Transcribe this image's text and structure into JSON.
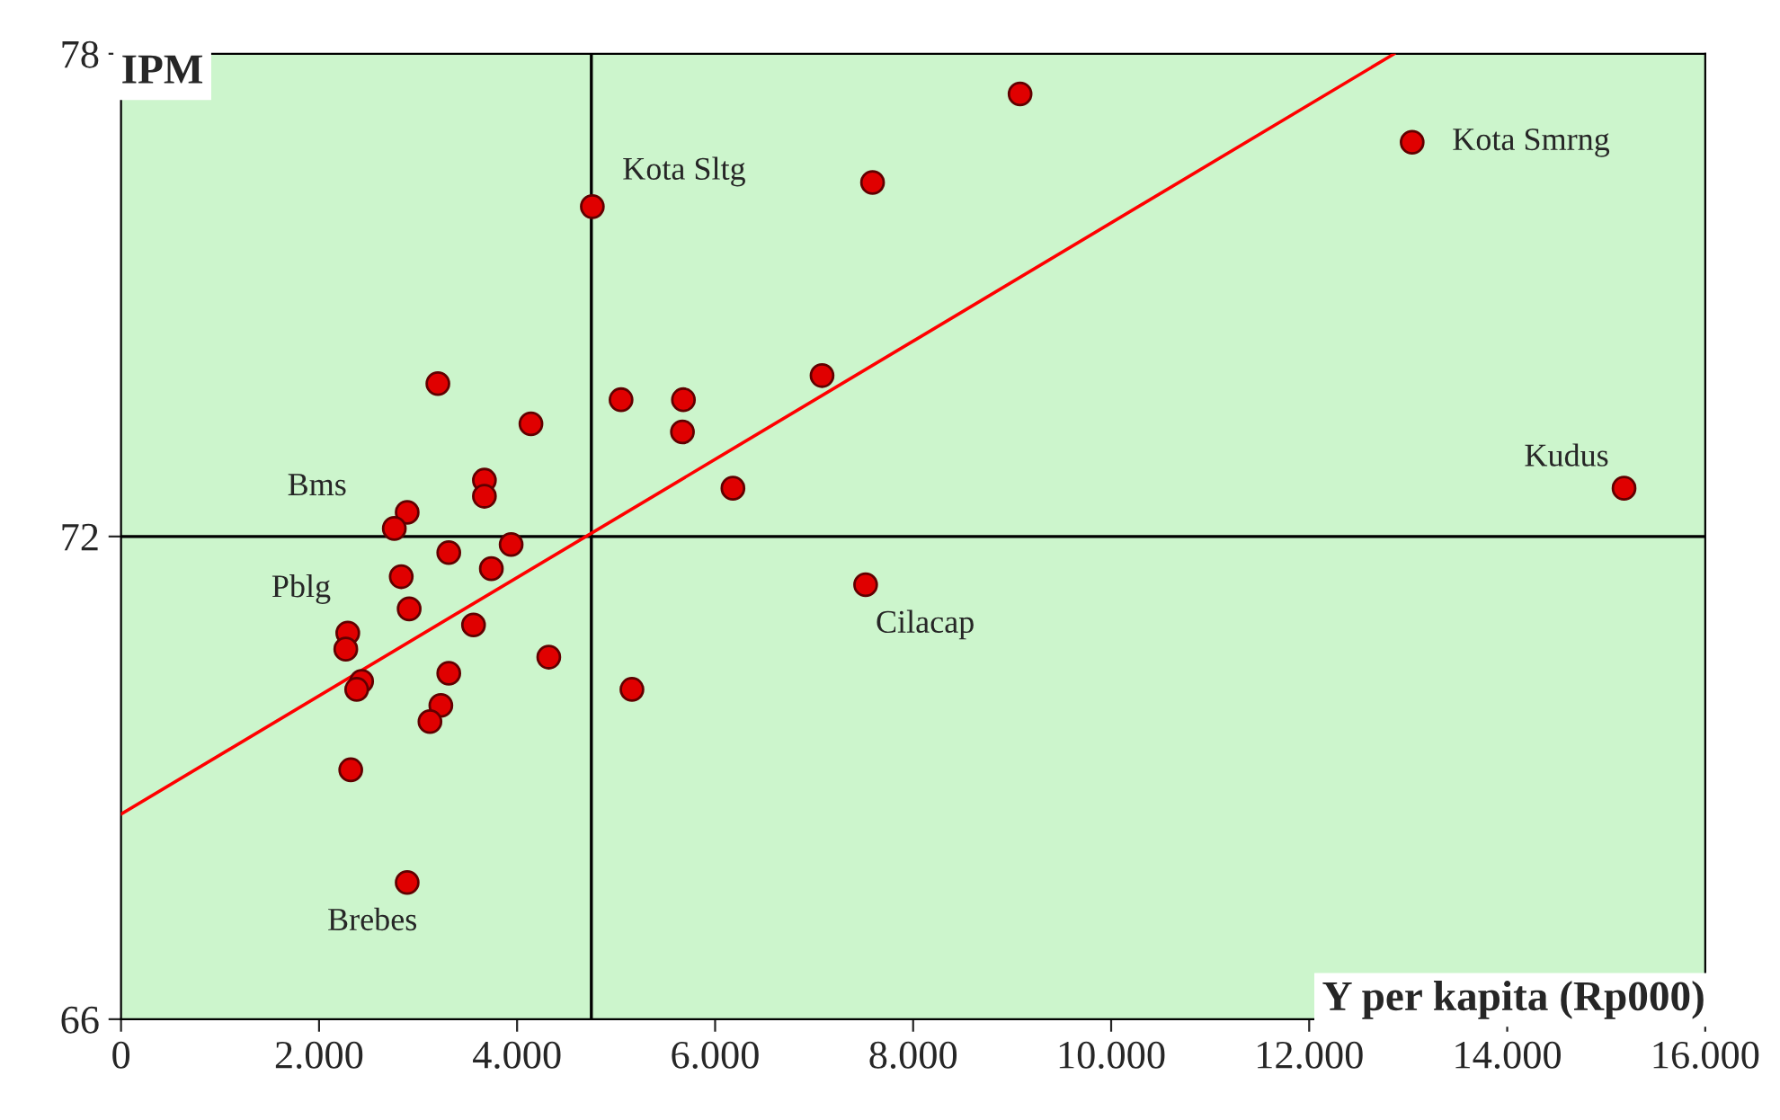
{
  "chart_data": {
    "type": "scatter",
    "xlabel": "Y per kapita (Rp000)",
    "ylabel": "IPM",
    "xlim": [
      0,
      16000
    ],
    "ylim": [
      66,
      78
    ],
    "xticks": [
      0,
      {
        "value": 2000,
        "label": "2.000"
      },
      {
        "value": 4000,
        "label": "4.000"
      },
      {
        "value": 6000,
        "label": "6.000"
      },
      {
        "value": 8000,
        "label": "8.000"
      },
      {
        "value": 10000,
        "label": "10.000"
      },
      {
        "value": 12000,
        "label": "12.000"
      },
      {
        "value": 14000,
        "label": "14.000"
      },
      {
        "value": 16000,
        "label": "16.000"
      }
    ],
    "yticks": [
      66,
      72,
      78
    ],
    "grid": false,
    "series": [
      {
        "marker": "circle",
        "color": "#e00000",
        "x": [
          9080,
          13040,
          7590,
          4760,
          3200,
          7080,
          5050,
          5680,
          4140,
          5670,
          15180,
          3670,
          3670,
          6180,
          2890,
          2760,
          3940,
          3310,
          3740,
          2830,
          7520,
          2910,
          3560,
          2290,
          2270,
          4320,
          3310,
          2430,
          2380,
          5160,
          3230,
          3120,
          2320,
          2890
        ],
        "values": [
          77.5,
          76.9,
          76.4,
          76.1,
          73.9,
          74.0,
          73.7,
          73.7,
          73.4,
          73.3,
          72.6,
          72.7,
          72.5,
          72.6,
          72.3,
          72.1,
          71.9,
          71.8,
          71.6,
          71.5,
          71.4,
          71.1,
          70.9,
          70.8,
          70.6,
          70.5,
          70.3,
          70.2,
          70.1,
          70.1,
          69.9,
          69.7,
          69.1,
          67.7
        ]
      },
      {
        "type": "line",
        "color": "#ff0000",
        "line_style": "solid",
        "x": [
          0,
          12860
        ],
        "values": [
          68.55,
          78
        ]
      }
    ],
    "ref_lines": [
      {
        "axis": "x",
        "value": 4750,
        "color": "#000000"
      },
      {
        "axis": "y",
        "value": 72,
        "color": "#000000"
      }
    ],
    "annotations": [
      {
        "text": "Kota Sltg",
        "x": 4760,
        "y": 76.1
      },
      {
        "text": "Kota Smrng",
        "x": 13040,
        "y": 76.9
      },
      {
        "text": "Kudus",
        "x": 15180,
        "y": 72.6
      },
      {
        "text": "Bms",
        "x": 2890,
        "y": 72.3
      },
      {
        "text": "Pblg",
        "x": 2830,
        "y": 71.5
      },
      {
        "text": "Cilacap",
        "x": 7520,
        "y": 71.4
      },
      {
        "text": "Brebes",
        "x": 2890,
        "y": 67.7
      }
    ]
  }
}
